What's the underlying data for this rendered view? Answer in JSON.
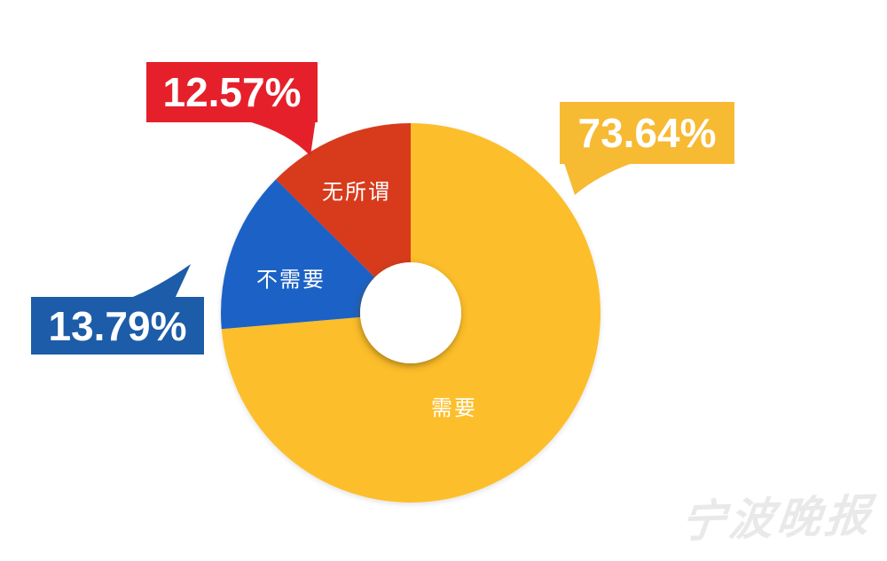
{
  "chart_data": {
    "type": "pie",
    "variant": "donut",
    "title": "",
    "unit": "%",
    "direction": "clockwise",
    "start_angle_deg": 0,
    "legend_position": "none",
    "slices": [
      {
        "label": "需要",
        "value": 73.64,
        "display": "73.64%",
        "color": "#FCBE2C"
      },
      {
        "label": "不需要",
        "value": 13.79,
        "display": "13.79%",
        "color": "#1A62C6"
      },
      {
        "label": "无所谓",
        "value": 12.57,
        "display": "12.57%",
        "color": "#D73A1E"
      }
    ]
  },
  "callouts": [
    {
      "slice": "需要",
      "text": "73.64%",
      "color": "#F7BA33",
      "text_color": "#FFFFFF"
    },
    {
      "slice": "不需要",
      "text": "13.79%",
      "color": "#1C5CA8",
      "text_color": "#FFFFFF"
    },
    {
      "slice": "无所谓",
      "text": "12.57%",
      "color": "#E5202B",
      "text_color": "#FFFFFF"
    }
  ],
  "watermark": {
    "text": "宁波晚报"
  }
}
